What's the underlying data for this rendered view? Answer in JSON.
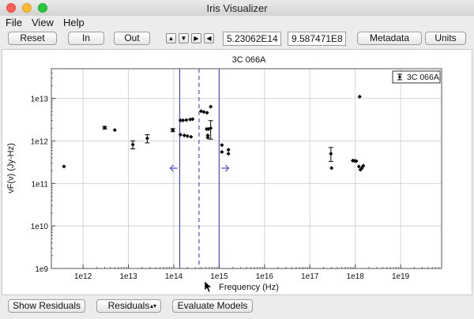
{
  "window": {
    "title": "Iris Visualizer"
  },
  "menu": {
    "items": [
      "File",
      "View",
      "Help"
    ]
  },
  "toolbar": {
    "reset_label": "Reset",
    "in_label": "In",
    "out_label": "Out",
    "nav_arrows": [
      "▲",
      "▼",
      "▶",
      "◀"
    ],
    "x_value": "5.23062E14",
    "y_value": "9.587471E8",
    "metadata_label": "Metadata",
    "units_label": "Units"
  },
  "bottom": {
    "show_residuals_label": "Show Residuals",
    "residuals_select": "Residuals",
    "evaluate_models_label": "Evaluate Models"
  },
  "chart_data": {
    "type": "scatter",
    "title": "3C 066A",
    "xlabel": "Frequency (Hz)",
    "ylabel": "νF(ν) (Jy-Hz)",
    "xscale": "log",
    "yscale": "log",
    "xlim": [
      200000000000.0,
      8e+19
    ],
    "ylim": [
      1000000000.0,
      50000000000000.0
    ],
    "xticks": [
      "1e12",
      "1e13",
      "1e14",
      "1e15",
      "1e16",
      "1e17",
      "1e18",
      "1e19"
    ],
    "yticks": [
      "1e9",
      "1e10",
      "1e11",
      "1e12",
      "1e13"
    ],
    "grid": true,
    "legend": {
      "position": "top-right",
      "entries": [
        "3C 066A"
      ]
    },
    "series": [
      {
        "name": "3C 066A",
        "points": [
          {
            "x": 380000000000.0,
            "y": 250000000000.0
          },
          {
            "x": 3000000000000.0,
            "y": 2050000000000.0,
            "yerr": [
              1900000000000.0,
              2200000000000.0
            ]
          },
          {
            "x": 5000000000000.0,
            "y": 1800000000000.0
          },
          {
            "x": 12500000000000.0,
            "y": 820000000000.0,
            "yerr": [
              650000000000.0,
              1000000000000.0
            ]
          },
          {
            "x": 26000000000000.0,
            "y": 1150000000000.0,
            "yerr": [
              900000000000.0,
              1400000000000.0
            ]
          },
          {
            "x": 95000000000000.0,
            "y": 1800000000000.0,
            "yerr": [
              1650000000000.0,
              1950000000000.0
            ]
          },
          {
            "x": 140000000000000.0,
            "y": 3050000000000.0
          },
          {
            "x": 160000000000000.0,
            "y": 3050000000000.0
          },
          {
            "x": 190000000000000.0,
            "y": 3100000000000.0
          },
          {
            "x": 230000000000000.0,
            "y": 3200000000000.0
          },
          {
            "x": 260000000000000.0,
            "y": 3250000000000.0
          },
          {
            "x": 140000000000000.0,
            "y": 1400000000000.0
          },
          {
            "x": 170000000000000.0,
            "y": 1350000000000.0
          },
          {
            "x": 200000000000000.0,
            "y": 1300000000000.0
          },
          {
            "x": 240000000000000.0,
            "y": 1250000000000.0
          },
          {
            "x": 400000000000000.0,
            "y": 5000000000000.0
          },
          {
            "x": 460000000000000.0,
            "y": 4800000000000.0
          },
          {
            "x": 540000000000000.0,
            "y": 4600000000000.0
          },
          {
            "x": 650000000000000.0,
            "y": 6400000000000.0
          },
          {
            "x": 530000000000000.0,
            "y": 1900000000000.0
          },
          {
            "x": 580000000000000.0,
            "y": 1900000000000.0
          },
          {
            "x": 560000000000000.0,
            "y": 1350000000000.0
          },
          {
            "x": 560000000000000.0,
            "y": 1200000000000.0
          },
          {
            "x": 650000000000000.0,
            "y": 2000000000000.0,
            "yerr": [
              1100000000000.0,
              3000000000000.0
            ]
          },
          {
            "x": 1150000000000000.0,
            "y": 800000000000.0
          },
          {
            "x": 1150000000000000.0,
            "y": 550000000000.0
          },
          {
            "x": 1600000000000000.0,
            "y": 620000000000.0
          },
          {
            "x": 1600000000000000.0,
            "y": 500000000000.0
          },
          {
            "x": 2.9e+17,
            "y": 500000000000.0,
            "yerr": [
              330000000000.0,
              700000000000.0
            ]
          },
          {
            "x": 3e+17,
            "y": 230000000000.0
          },
          {
            "x": 8.8e+17,
            "y": 345000000000.0
          },
          {
            "x": 9.6e+17,
            "y": 340000000000.0
          },
          {
            "x": 1.05e+18,
            "y": 335000000000.0
          },
          {
            "x": 1.2e+18,
            "y": 250000000000.0
          },
          {
            "x": 1.3e+18,
            "y": 210000000000.0
          },
          {
            "x": 1.4e+18,
            "y": 230000000000.0
          },
          {
            "x": 1.5e+18,
            "y": 260000000000.0
          },
          {
            "x": 1.25e+18,
            "y": 11000000000000.0
          }
        ]
      }
    ],
    "range_markers": {
      "solid": [
        135000000000000.0,
        1000000000000000.0
      ],
      "dashed": [
        360000000000000.0
      ]
    }
  }
}
